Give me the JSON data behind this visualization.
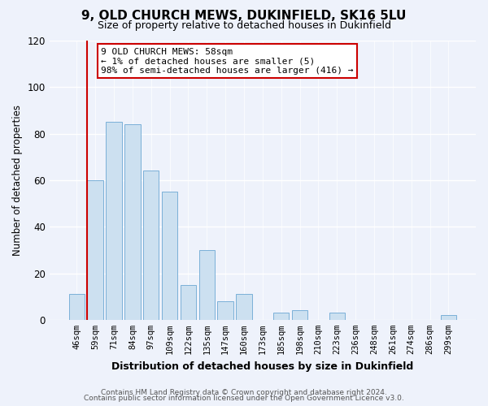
{
  "title": "9, OLD CHURCH MEWS, DUKINFIELD, SK16 5LU",
  "subtitle": "Size of property relative to detached houses in Dukinfield",
  "bar_labels": [
    "46sqm",
    "59sqm",
    "71sqm",
    "84sqm",
    "97sqm",
    "109sqm",
    "122sqm",
    "135sqm",
    "147sqm",
    "160sqm",
    "173sqm",
    "185sqm",
    "198sqm",
    "210sqm",
    "223sqm",
    "236sqm",
    "248sqm",
    "261sqm",
    "274sqm",
    "286sqm",
    "299sqm"
  ],
  "bar_values": [
    11,
    60,
    85,
    84,
    64,
    55,
    15,
    30,
    8,
    11,
    0,
    3,
    4,
    0,
    3,
    0,
    0,
    0,
    0,
    0,
    2
  ],
  "bar_color": "#cce0f0",
  "bar_edge_color": "#7ab0d8",
  "ylim": [
    0,
    120
  ],
  "yticks": [
    0,
    20,
    40,
    60,
    80,
    100,
    120
  ],
  "ylabel": "Number of detached properties",
  "xlabel": "Distribution of detached houses by size in Dukinfield",
  "annotation_title": "9 OLD CHURCH MEWS: 58sqm",
  "annotation_line1": "← 1% of detached houses are smaller (5)",
  "annotation_line2": "98% of semi-detached houses are larger (416) →",
  "marker_color": "#cc0000",
  "footer_line1": "Contains HM Land Registry data © Crown copyright and database right 2024.",
  "footer_line2": "Contains public sector information licensed under the Open Government Licence v3.0.",
  "background_color": "#eef2fb",
  "grid_color": "#d8e4f5"
}
